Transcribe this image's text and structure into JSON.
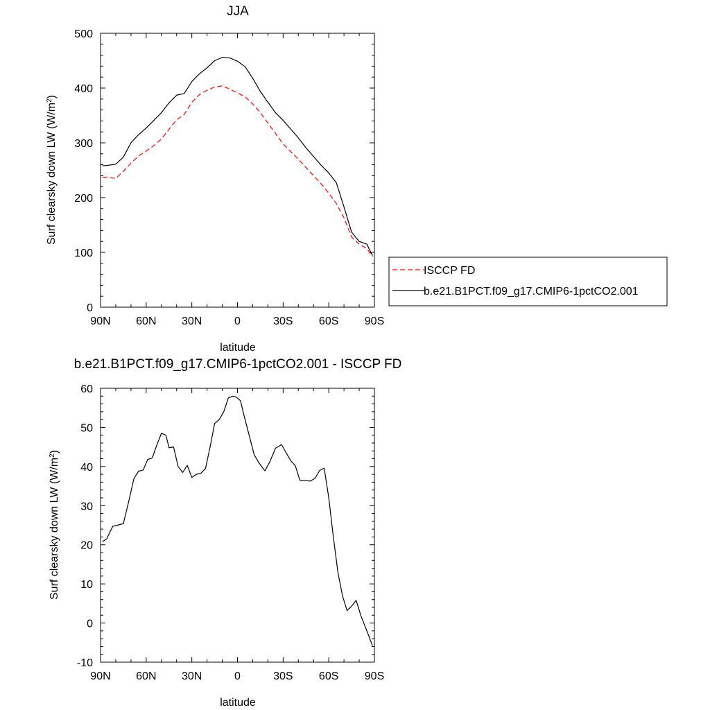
{
  "chart_data": [
    {
      "type": "line",
      "title": "JJA",
      "xlabel": "latitude",
      "ylabel": "Surf clearsky down LW (W/m²)",
      "xlim": [
        90,
        -90
      ],
      "ylim": [
        0,
        500
      ],
      "xticks": [
        90,
        60,
        30,
        0,
        -30,
        -60,
        -90
      ],
      "xtick_labels": [
        "90N",
        "60N",
        "30N",
        "0",
        "30S",
        "60S",
        "90S"
      ],
      "yticks": [
        0,
        100,
        200,
        300,
        400,
        500
      ],
      "ytick_labels": [
        "0",
        "100",
        "200",
        "300",
        "400",
        "500"
      ],
      "grid": false,
      "legend_position": "right",
      "series": [
        {
          "name": "ISCCP FD",
          "color": "#ff0000",
          "dash": "dashed",
          "x": [
            88.75,
            85,
            80,
            75,
            70,
            65,
            60,
            55,
            50,
            45,
            40,
            35,
            30,
            25,
            20,
            15,
            10,
            5,
            0,
            -5,
            -10,
            -15,
            -20,
            -25,
            -30,
            -35,
            -40,
            -45,
            -50,
            -55,
            -60,
            -65,
            -70,
            -75,
            -80,
            -85,
            -88.75
          ],
          "y": [
            237,
            237,
            235,
            248,
            263,
            276,
            285,
            295,
            307,
            325,
            342,
            352,
            374,
            388,
            396,
            402,
            404,
            398,
            391,
            384,
            371,
            355,
            336,
            317,
            298,
            284,
            270,
            255,
            240,
            225,
            208,
            189,
            163,
            128,
            115,
            107,
            92
          ]
        },
        {
          "name": "b.e21.B1PCT.f09_g17.CMIP6-1pctCO2.001",
          "color": "#000000",
          "dash": "solid",
          "x": [
            88.75,
            85,
            80,
            75,
            70,
            65,
            60,
            55,
            50,
            45,
            40,
            35,
            30,
            25,
            20,
            15,
            10,
            5,
            0,
            -5,
            -10,
            -15,
            -20,
            -25,
            -30,
            -35,
            -40,
            -45,
            -50,
            -55,
            -60,
            -65,
            -70,
            -75,
            -80,
            -85,
            -88.75
          ],
          "y": [
            258,
            259,
            261,
            274,
            300,
            315,
            327,
            341,
            355,
            373,
            387,
            390,
            412,
            426,
            437,
            450,
            456,
            455,
            449,
            439,
            418,
            394,
            374,
            355,
            341,
            325,
            309,
            291,
            275,
            259,
            245,
            227,
            183,
            137,
            120,
            115,
            94
          ]
        }
      ]
    },
    {
      "type": "line",
      "title": "b.e21.B1PCT.f09_g17.CMIP6-1pctCO2.001 - ISCCP FD",
      "xlabel": "latitude",
      "ylabel": "Surf clearsky down LW (W/m²)",
      "xlim": [
        90,
        -90
      ],
      "ylim": [
        -10,
        60
      ],
      "xticks": [
        90,
        60,
        30,
        0,
        -30,
        -60,
        -90
      ],
      "xtick_labels": [
        "90N",
        "60N",
        "30N",
        "0",
        "30S",
        "60S",
        "90S"
      ],
      "yticks": [
        -10,
        0,
        10,
        20,
        30,
        40,
        50,
        60
      ],
      "ytick_labels": [
        "-10",
        "0",
        "10",
        "20",
        "30",
        "40",
        "50",
        "60"
      ],
      "grid": false,
      "series": [
        {
          "color": "#000000",
          "dash": "solid",
          "x": [
            88.75,
            86,
            82,
            79,
            75,
            72,
            68,
            65,
            62,
            59,
            56,
            53,
            50,
            47,
            45,
            42,
            39,
            36,
            33,
            30,
            27,
            24,
            21,
            18,
            15,
            12,
            9,
            6,
            3,
            1,
            -2,
            -4,
            -7,
            -11,
            -14,
            -18,
            -21,
            -25,
            -29,
            -32,
            -35,
            -38,
            -41,
            -44,
            -48,
            -51,
            -54,
            -57,
            -60,
            -63,
            -66,
            -69,
            -72,
            -75,
            -78,
            -81,
            -84,
            -86,
            -88.75
          ],
          "y": [
            20.8,
            21.5,
            24.7,
            25.0,
            25.4,
            30.2,
            37.0,
            38.8,
            39.1,
            41.8,
            42.2,
            45.5,
            48.5,
            48.0,
            44.8,
            45.0,
            40.0,
            38.5,
            40.3,
            37.2,
            38.0,
            38.3,
            39.5,
            45.0,
            51.0,
            52.0,
            54.0,
            57.5,
            58.0,
            57.8,
            56.8,
            53.5,
            49.0,
            43.0,
            41.0,
            38.9,
            41.0,
            44.7,
            45.6,
            43.5,
            41.5,
            40.2,
            36.5,
            36.4,
            36.3,
            37.0,
            39.0,
            39.6,
            32.0,
            22.0,
            13.0,
            7.0,
            3.2,
            4.3,
            5.8,
            2.0,
            -1.0,
            -3.0,
            -5.8
          ]
        }
      ]
    }
  ]
}
